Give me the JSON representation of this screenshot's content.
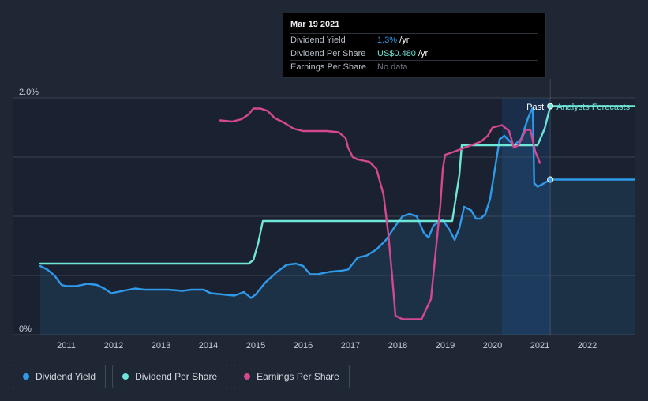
{
  "tooltip": {
    "date": "Mar 19 2021",
    "rows": [
      {
        "label": "Dividend Yield",
        "value": "1.3%",
        "suffix": " /yr"
      },
      {
        "label": "Dividend Per Share",
        "value": "US$0.480",
        "suffix": " /yr"
      },
      {
        "label": "Earnings Per Share",
        "value": "No data",
        "suffix": ""
      }
    ]
  },
  "legend": [
    {
      "label": "Dividend Yield",
      "color": "#2f9ae9"
    },
    {
      "label": "Dividend Per Share",
      "color": "#6ee6d8"
    },
    {
      "label": "Earnings Per Share",
      "color": "#d4488f"
    }
  ],
  "past_label": "Past",
  "forecast_label": "Analysts Forecasts",
  "chart_data": {
    "type": "line",
    "x_ticks": [
      "2011",
      "2012",
      "2013",
      "2014",
      "2015",
      "2016",
      "2017",
      "2018",
      "2019",
      "2020",
      "2021",
      "2022"
    ],
    "y_ticks": [
      "0%",
      "2.0%"
    ],
    "ylim": [
      0,
      2.0
    ],
    "xlim": [
      2010.4,
      2023.0
    ],
    "highlight_from": 2020.2,
    "now": 2021.22,
    "series": [
      {
        "name": "Dividend Yield",
        "color": "#2f9ae9",
        "points": [
          [
            2010.45,
            0.58
          ],
          [
            2010.6,
            0.55
          ],
          [
            2010.75,
            0.5
          ],
          [
            2010.9,
            0.42
          ],
          [
            2011.0,
            0.41
          ],
          [
            2011.2,
            0.41
          ],
          [
            2011.45,
            0.43
          ],
          [
            2011.65,
            0.42
          ],
          [
            2011.8,
            0.39
          ],
          [
            2011.95,
            0.35
          ],
          [
            2012.2,
            0.37
          ],
          [
            2012.45,
            0.39
          ],
          [
            2012.65,
            0.38
          ],
          [
            2012.9,
            0.38
          ],
          [
            2013.15,
            0.38
          ],
          [
            2013.45,
            0.37
          ],
          [
            2013.65,
            0.38
          ],
          [
            2013.9,
            0.38
          ],
          [
            2014.05,
            0.35
          ],
          [
            2014.3,
            0.34
          ],
          [
            2014.55,
            0.33
          ],
          [
            2014.75,
            0.36
          ],
          [
            2014.9,
            0.31
          ],
          [
            2015.0,
            0.34
          ],
          [
            2015.2,
            0.44
          ],
          [
            2015.45,
            0.53
          ],
          [
            2015.65,
            0.59
          ],
          [
            2015.85,
            0.6
          ],
          [
            2016.0,
            0.58
          ],
          [
            2016.15,
            0.51
          ],
          [
            2016.3,
            0.51
          ],
          [
            2016.55,
            0.53
          ],
          [
            2016.8,
            0.54
          ],
          [
            2016.95,
            0.55
          ],
          [
            2017.15,
            0.65
          ],
          [
            2017.35,
            0.67
          ],
          [
            2017.55,
            0.72
          ],
          [
            2017.75,
            0.8
          ],
          [
            2017.95,
            0.92
          ],
          [
            2018.1,
            1.0
          ],
          [
            2018.25,
            1.02
          ],
          [
            2018.4,
            1.0
          ],
          [
            2018.55,
            0.86
          ],
          [
            2018.65,
            0.82
          ],
          [
            2018.75,
            0.92
          ],
          [
            2018.85,
            0.95
          ],
          [
            2018.95,
            0.97
          ],
          [
            2019.1,
            0.88
          ],
          [
            2019.2,
            0.8
          ],
          [
            2019.3,
            0.9
          ],
          [
            2019.4,
            1.08
          ],
          [
            2019.55,
            1.05
          ],
          [
            2019.65,
            0.98
          ],
          [
            2019.75,
            0.98
          ],
          [
            2019.85,
            1.02
          ],
          [
            2019.95,
            1.15
          ],
          [
            2020.05,
            1.4
          ],
          [
            2020.15,
            1.65
          ],
          [
            2020.25,
            1.68
          ],
          [
            2020.45,
            1.6
          ],
          [
            2020.6,
            1.65
          ],
          [
            2020.75,
            1.83
          ],
          [
            2020.85,
            1.92
          ],
          [
            2020.88,
            1.28
          ],
          [
            2020.95,
            1.25
          ],
          [
            2021.05,
            1.27
          ],
          [
            2021.22,
            1.31
          ],
          [
            2023.0,
            1.31
          ]
        ]
      },
      {
        "name": "Dividend Per Share",
        "color": "#6ee6d8",
        "points": [
          [
            2010.45,
            0.6
          ],
          [
            2014.85,
            0.6
          ],
          [
            2014.95,
            0.63
          ],
          [
            2015.05,
            0.77
          ],
          [
            2015.15,
            0.96
          ],
          [
            2019.15,
            0.96
          ],
          [
            2019.3,
            1.35
          ],
          [
            2019.35,
            1.6
          ],
          [
            2020.85,
            1.6
          ],
          [
            2020.95,
            1.6
          ],
          [
            2021.1,
            1.74
          ],
          [
            2021.22,
            1.93
          ],
          [
            2023.0,
            1.93
          ]
        ]
      },
      {
        "name": "Earnings Per Share",
        "color": "#d4488f",
        "points": [
          [
            2014.25,
            1.81
          ],
          [
            2014.5,
            1.8
          ],
          [
            2014.7,
            1.82
          ],
          [
            2014.85,
            1.86
          ],
          [
            2014.95,
            1.91
          ],
          [
            2015.1,
            1.91
          ],
          [
            2015.25,
            1.89
          ],
          [
            2015.4,
            1.83
          ],
          [
            2015.6,
            1.79
          ],
          [
            2015.8,
            1.74
          ],
          [
            2016.0,
            1.72
          ],
          [
            2016.5,
            1.72
          ],
          [
            2016.75,
            1.71
          ],
          [
            2016.9,
            1.66
          ],
          [
            2016.95,
            1.58
          ],
          [
            2017.05,
            1.5
          ],
          [
            2017.15,
            1.48
          ],
          [
            2017.4,
            1.46
          ],
          [
            2017.55,
            1.4
          ],
          [
            2017.7,
            1.18
          ],
          [
            2017.8,
            0.85
          ],
          [
            2017.88,
            0.5
          ],
          [
            2017.95,
            0.16
          ],
          [
            2018.1,
            0.13
          ],
          [
            2018.3,
            0.13
          ],
          [
            2018.5,
            0.13
          ],
          [
            2018.7,
            0.3
          ],
          [
            2018.8,
            0.7
          ],
          [
            2018.9,
            1.1
          ],
          [
            2018.95,
            1.4
          ],
          [
            2019.0,
            1.52
          ],
          [
            2019.15,
            1.54
          ],
          [
            2019.35,
            1.57
          ],
          [
            2019.55,
            1.6
          ],
          [
            2019.75,
            1.63
          ],
          [
            2019.9,
            1.68
          ],
          [
            2020.0,
            1.75
          ],
          [
            2020.2,
            1.77
          ],
          [
            2020.35,
            1.72
          ],
          [
            2020.45,
            1.58
          ],
          [
            2020.55,
            1.6
          ],
          [
            2020.7,
            1.73
          ],
          [
            2020.8,
            1.73
          ],
          [
            2020.9,
            1.55
          ],
          [
            2021.0,
            1.45
          ]
        ]
      }
    ]
  }
}
